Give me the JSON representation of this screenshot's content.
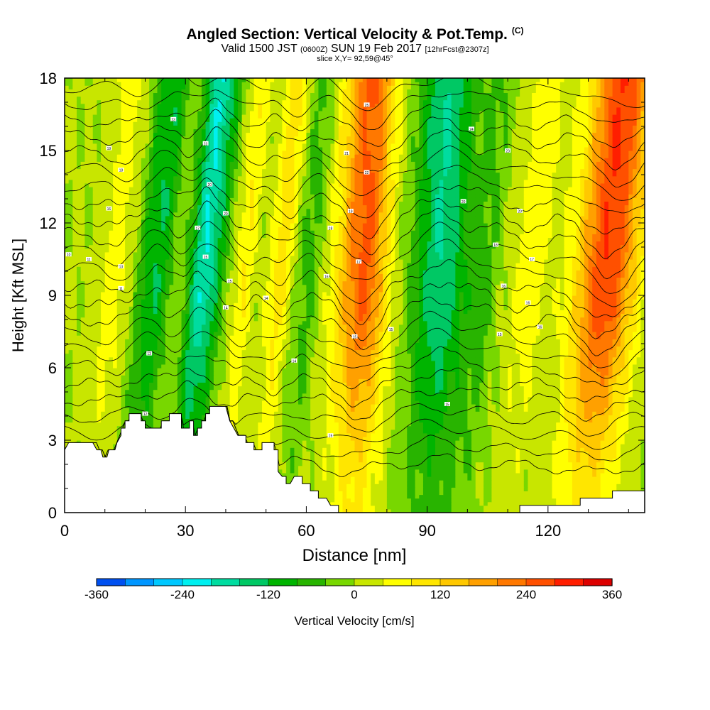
{
  "title": {
    "main": "Angled Section: Vertical Velocity & Pot.Temp.",
    "unit_tag": "(C)",
    "valid_prefix": "Valid 1500 JST",
    "valid_z": "(0600Z)",
    "valid_date": "SUN 19 Feb 2017",
    "forecast": "[12hrFcst@2307z]",
    "slice": "slice X,Y= 92,59@45°"
  },
  "chart_data": {
    "type": "heatmap",
    "title": "Angled Section: Vertical Velocity & Pot.Temp.",
    "xlabel": "Distance [nm]",
    "ylabel": "Height [Kft MSL]",
    "xlim": [
      0,
      144
    ],
    "ylim": [
      0,
      18
    ],
    "x_ticks": [
      0,
      30,
      60,
      90,
      120
    ],
    "y_ticks": [
      0,
      3,
      6,
      9,
      12,
      15,
      18
    ],
    "colorbar": {
      "label": "Vertical Velocity [cm/s]",
      "tick_labels": [
        "-360",
        "-240",
        "-120",
        "0",
        "120",
        "240",
        "360"
      ],
      "range": [
        -360,
        360
      ],
      "step": 40,
      "colors": [
        "#0000ff",
        "#0050f0",
        "#0096ff",
        "#00c8ff",
        "#00f0f0",
        "#00dca0",
        "#00c864",
        "#00b400",
        "#28b400",
        "#78d700",
        "#c8e600",
        "#ffff00",
        "#ffe600",
        "#ffc800",
        "#ffa000",
        "#ff7800",
        "#ff5000",
        "#ff1e00",
        "#dc0000",
        "#b40046",
        "#96005a",
        "#78007f"
      ]
    },
    "vertical_velocity_bands": [
      {
        "x": 5,
        "w": 220,
        "peak": 4
      },
      {
        "x": 12,
        "w": 80,
        "peak": 60
      },
      {
        "x": 22,
        "w": 85,
        "peak": -120
      },
      {
        "x": 29,
        "w": 55,
        "peak": 40
      },
      {
        "x": 34,
        "w": 90,
        "peak": -200
      },
      {
        "x": 44,
        "w": 55,
        "peak": 80
      },
      {
        "x": 53,
        "w": 55,
        "peak": 100
      },
      {
        "x": 60,
        "w": 55,
        "peak": -60
      },
      {
        "x": 74,
        "w": 130,
        "peak": 250
      },
      {
        "x": 81,
        "w": 70,
        "peak": -20
      },
      {
        "x": 93,
        "w": 140,
        "peak": -160
      },
      {
        "x": 104,
        "w": 70,
        "peak": -40
      },
      {
        "x": 115,
        "w": 95,
        "peak": 60
      },
      {
        "x": 134,
        "w": 150,
        "peak": 280
      }
    ],
    "terrain_height_kft": [
      [
        0,
        2.6
      ],
      [
        1,
        2.9
      ],
      [
        7,
        2.9
      ],
      [
        8,
        2.6
      ],
      [
        9,
        2.6
      ],
      [
        9.5,
        2.3
      ],
      [
        10.5,
        2.3
      ],
      [
        11,
        2.6
      ],
      [
        12.5,
        2.6
      ],
      [
        13,
        2.9
      ],
      [
        14,
        3.2
      ],
      [
        14,
        3.5
      ],
      [
        15,
        3.5
      ],
      [
        15,
        3.8
      ],
      [
        16,
        3.8
      ],
      [
        16,
        4.1
      ],
      [
        18,
        4.1
      ],
      [
        18,
        4.1
      ],
      [
        19,
        4.1
      ],
      [
        19,
        3.8
      ],
      [
        20,
        3.8
      ],
      [
        20,
        3.5
      ],
      [
        24,
        3.5
      ],
      [
        24,
        3.8
      ],
      [
        26,
        3.8
      ],
      [
        26,
        4.1
      ],
      [
        29,
        4.1
      ],
      [
        29,
        3.5
      ],
      [
        31,
        3.5
      ],
      [
        31,
        3.8
      ],
      [
        32,
        3.8
      ],
      [
        32,
        3.2
      ],
      [
        33,
        3.2
      ],
      [
        33,
        3.5
      ],
      [
        34,
        3.5
      ],
      [
        34,
        3.8
      ],
      [
        35,
        3.8
      ],
      [
        35,
        4.1
      ],
      [
        36,
        4.1
      ],
      [
        36,
        4.4
      ],
      [
        40,
        4.4
      ],
      [
        41,
        3.8
      ],
      [
        42,
        3.5
      ],
      [
        43,
        3.2
      ],
      [
        45,
        3.2
      ],
      [
        45,
        2.9
      ],
      [
        47,
        2.9
      ],
      [
        47,
        2.6
      ],
      [
        49,
        2.6
      ],
      [
        49,
        2.9
      ],
      [
        52,
        2.9
      ],
      [
        52,
        2.6
      ],
      [
        53,
        2.6
      ],
      [
        53,
        1.7
      ],
      [
        54,
        1.5
      ],
      [
        55,
        1.5
      ],
      [
        55,
        1.2
      ],
      [
        56,
        1.2
      ],
      [
        57,
        1.5
      ],
      [
        59,
        1.5
      ],
      [
        59,
        1.2
      ],
      [
        61,
        1.2
      ],
      [
        61,
        0.9
      ],
      [
        63,
        0.9
      ],
      [
        63,
        0.6
      ],
      [
        65,
        0.6
      ],
      [
        66,
        0.3
      ],
      [
        68,
        0.3
      ],
      [
        68,
        0
      ],
      [
        113,
        0
      ],
      [
        113,
        0.3
      ],
      [
        115,
        0.3
      ],
      [
        115,
        0.3
      ],
      [
        128,
        0.3
      ],
      [
        128,
        0.6
      ],
      [
        136,
        0.6
      ],
      [
        136,
        0.9
      ],
      [
        144,
        0.9
      ]
    ],
    "isentrope_count": 24,
    "contour_labels": [
      {
        "x": 1,
        "y": 10.7,
        "t": "10"
      },
      {
        "x": 6,
        "y": 10.5,
        "t": "11"
      },
      {
        "x": 11,
        "y": 15.1,
        "t": "19"
      },
      {
        "x": 14,
        "y": 14.2,
        "t": "18"
      },
      {
        "x": 11,
        "y": 12.6,
        "t": "16"
      },
      {
        "x": 14,
        "y": 10.2,
        "t": "13"
      },
      {
        "x": 14,
        "y": 9.3,
        "t": "11"
      },
      {
        "x": 21,
        "y": 6.6,
        "t": "13"
      },
      {
        "x": 20,
        "y": 4.1,
        "t": "12"
      },
      {
        "x": 27,
        "y": 16.3,
        "t": "23"
      },
      {
        "x": 35,
        "y": 15.3,
        "t": "23"
      },
      {
        "x": 36,
        "y": 13.6,
        "t": "20"
      },
      {
        "x": 33,
        "y": 11.8,
        "t": "17"
      },
      {
        "x": 35,
        "y": 10.6,
        "t": "15"
      },
      {
        "x": 40,
        "y": 12.4,
        "t": "20"
      },
      {
        "x": 41,
        "y": 9.6,
        "t": "15"
      },
      {
        "x": 40,
        "y": 8.5,
        "t": "14"
      },
      {
        "x": 50,
        "y": 8.9,
        "t": "14"
      },
      {
        "x": 57,
        "y": 6.3,
        "t": "14"
      },
      {
        "x": 66,
        "y": 3.2,
        "t": "15"
      },
      {
        "x": 70,
        "y": 14.9,
        "t": "21"
      },
      {
        "x": 75,
        "y": 16.9,
        "t": "25"
      },
      {
        "x": 75,
        "y": 14.1,
        "t": "22"
      },
      {
        "x": 71,
        "y": 12.5,
        "t": "19"
      },
      {
        "x": 66,
        "y": 11.8,
        "t": "18"
      },
      {
        "x": 65,
        "y": 9.8,
        "t": "16"
      },
      {
        "x": 73,
        "y": 10.4,
        "t": "17"
      },
      {
        "x": 72,
        "y": 7.3,
        "t": "15"
      },
      {
        "x": 81,
        "y": 7.6,
        "t": "15"
      },
      {
        "x": 95,
        "y": 4.5,
        "t": "15"
      },
      {
        "x": 101,
        "y": 15.9,
        "t": "24"
      },
      {
        "x": 99,
        "y": 12.9,
        "t": "20"
      },
      {
        "x": 110,
        "y": 15.0,
        "t": "23"
      },
      {
        "x": 113,
        "y": 12.5,
        "t": "20"
      },
      {
        "x": 107,
        "y": 11.1,
        "t": "18"
      },
      {
        "x": 116,
        "y": 10.5,
        "t": "17"
      },
      {
        "x": 109,
        "y": 9.4,
        "t": "16"
      },
      {
        "x": 115,
        "y": 8.7,
        "t": "16"
      },
      {
        "x": 108,
        "y": 7.4,
        "t": "15"
      },
      {
        "x": 118,
        "y": 7.7,
        "t": "16"
      }
    ]
  }
}
